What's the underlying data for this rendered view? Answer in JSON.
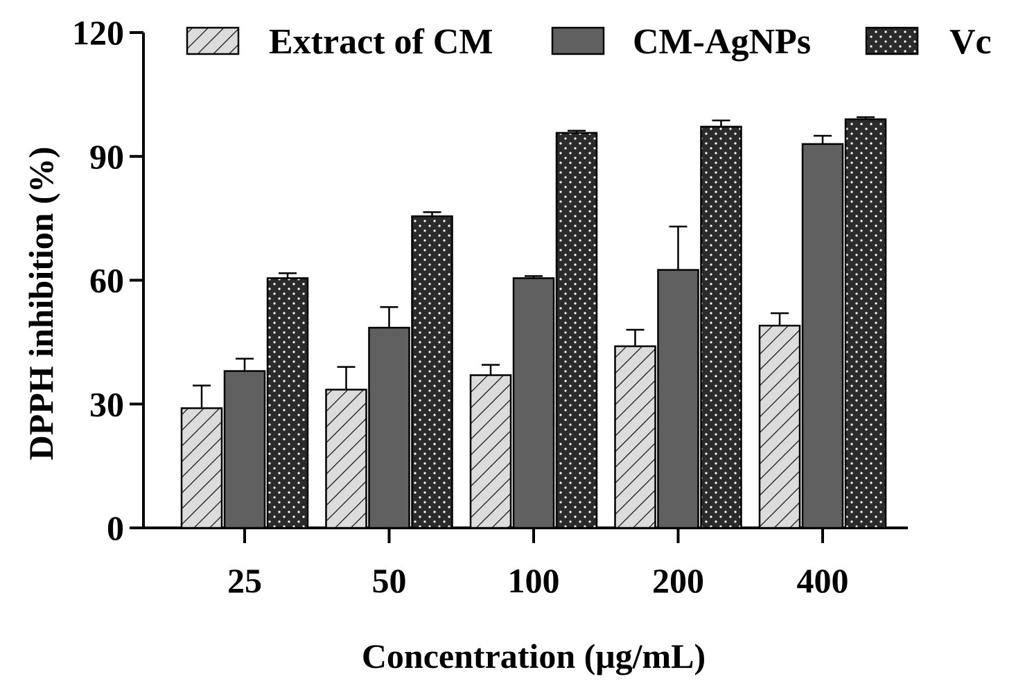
{
  "chart_data": {
    "type": "bar",
    "title": "",
    "xlabel": "Concentration (μg/mL)",
    "ylabel": "DPPH inhibition (%)",
    "ylim": [
      0,
      120
    ],
    "yticks": [
      "0",
      "30",
      "60",
      "90",
      "120"
    ],
    "categories": [
      "25",
      "50",
      "100",
      "200",
      "400"
    ],
    "grid": false,
    "legend_position": "top",
    "series": [
      {
        "name": "Extract of CM",
        "pattern": "hatch",
        "color": "#d9d9d9",
        "values": [
          29,
          33.5,
          37,
          44,
          49
        ],
        "errors": [
          5.5,
          5.5,
          2.5,
          4,
          3
        ]
      },
      {
        "name": "CM-AgNPs",
        "pattern": "solid",
        "color": "#606060",
        "values": [
          38,
          48.5,
          60.5,
          62.5,
          93
        ],
        "errors": [
          3,
          5,
          0.5,
          10.5,
          2
        ]
      },
      {
        "name": "Vc",
        "pattern": "dots",
        "color": "#2b2b2b",
        "values": [
          60.5,
          75.5,
          95.7,
          97.2,
          99
        ],
        "errors": [
          1.2,
          1,
          0.5,
          1.5,
          0.5
        ]
      }
    ]
  }
}
